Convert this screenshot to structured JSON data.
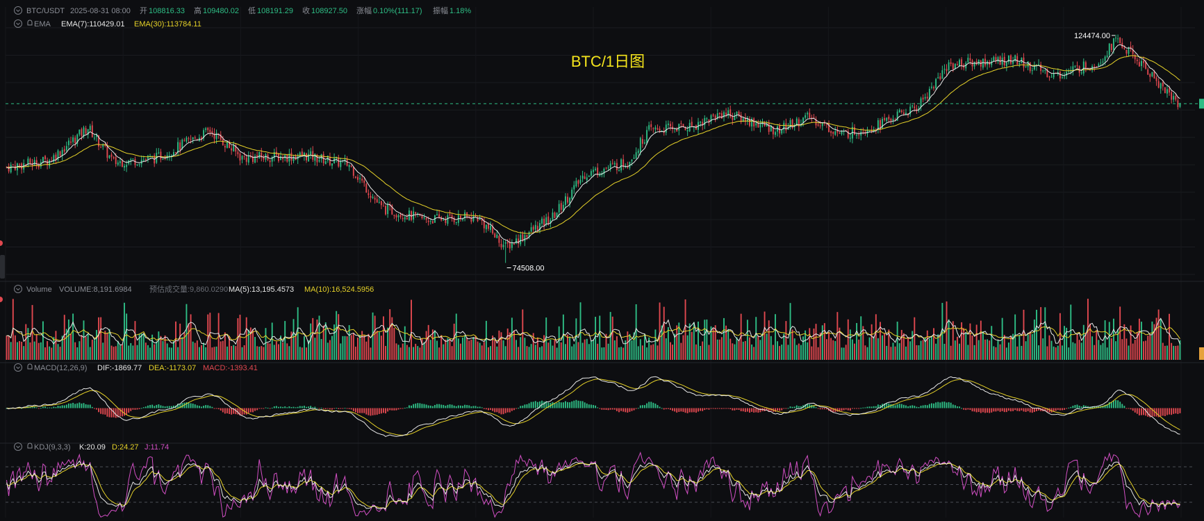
{
  "header": {
    "symbol": "BTC/USDT",
    "datetime": "2025-08-31 08:00",
    "open_label": "开",
    "open": "108816.33",
    "high_label": "高",
    "high": "109480.02",
    "low_label": "低",
    "low": "108191.29",
    "close_label": "收",
    "close": "108927.50",
    "change_label": "涨幅",
    "change": "0.10%(111.17)",
    "amplitude_label": "振幅",
    "amplitude": "1.18%"
  },
  "ema_legend": {
    "name": "EMA",
    "ema7": "EMA(7):110429.01",
    "ema30": "EMA(30):113784.11"
  },
  "volume_legend": {
    "name": "Volume",
    "volume": "VOLUME:8,191.6984",
    "estimate": "预估成交量:9,860.0290",
    "ma5": "MA(5):13,195.4573",
    "ma10": "MA(10):16,524.5956"
  },
  "macd_legend": {
    "name": "MACD(12,26,9)",
    "dif": "DIF:-1869.77",
    "dea": "DEA:-1173.07",
    "macd": "MACD:-1393.41"
  },
  "kdj_legend": {
    "name": "KDJ(9,3,3)",
    "k": "K:20.09",
    "d": "D:24.27",
    "j": "J:11.74"
  },
  "chart_title": "BTC/1日图",
  "colors": {
    "up": "#2ebd85",
    "down": "#e0484f",
    "ema7": "#e8e8e8",
    "ema30": "#e6d229",
    "macd_dea": "#e6d229",
    "kdj_j": "#d24fc4",
    "title": "#f5e51c"
  },
  "chart_data": {
    "type": "candlestick",
    "title": "BTC/1日图",
    "interval": "1D",
    "price_ylim": [
      72000,
      126000
    ],
    "annotations": [
      {
        "label": "124474.00",
        "value": 124474.0,
        "type": "high"
      },
      {
        "label": "74508.00",
        "value": 74508.0,
        "type": "low"
      }
    ],
    "path_approx": [
      {
        "i": 0,
        "close": 95500
      },
      {
        "i": 20,
        "close": 97000
      },
      {
        "i": 38,
        "close": 104200
      },
      {
        "i": 50,
        "close": 96500
      },
      {
        "i": 70,
        "close": 97500
      },
      {
        "i": 95,
        "close": 103500
      },
      {
        "i": 110,
        "close": 97500
      },
      {
        "i": 140,
        "close": 98000
      },
      {
        "i": 160,
        "close": 96000
      },
      {
        "i": 175,
        "close": 86500
      },
      {
        "i": 195,
        "close": 84000
      },
      {
        "i": 220,
        "close": 84500
      },
      {
        "i": 233,
        "close": 78000
      },
      {
        "i": 255,
        "close": 84500
      },
      {
        "i": 270,
        "close": 94000
      },
      {
        "i": 290,
        "close": 96500
      },
      {
        "i": 300,
        "close": 103500
      },
      {
        "i": 320,
        "close": 104500
      },
      {
        "i": 335,
        "close": 107500
      },
      {
        "i": 360,
        "close": 103500
      },
      {
        "i": 375,
        "close": 106500
      },
      {
        "i": 390,
        "close": 102500
      },
      {
        "i": 405,
        "close": 104500
      },
      {
        "i": 425,
        "close": 108500
      },
      {
        "i": 440,
        "close": 118000
      },
      {
        "i": 470,
        "close": 119000
      },
      {
        "i": 490,
        "close": 115500
      },
      {
        "i": 510,
        "close": 118500
      },
      {
        "i": 518,
        "close": 123500
      },
      {
        "i": 535,
        "close": 115500
      },
      {
        "i": 548,
        "close": 108900
      }
    ],
    "macd_series": [
      "DIF",
      "DEA",
      "MACD"
    ],
    "kdj_series": [
      "K",
      "D",
      "J"
    ],
    "kdj_levels": [
      20,
      50,
      80
    ]
  }
}
